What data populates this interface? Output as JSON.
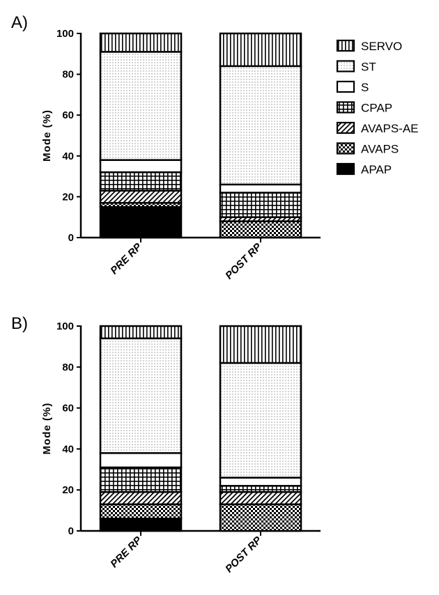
{
  "chart_data": [
    {
      "panel": "A)",
      "type": "bar",
      "stacked": true,
      "ylabel": "Mode (%)",
      "ylim": [
        0,
        100
      ],
      "yticks": [
        0,
        20,
        40,
        60,
        80,
        100
      ],
      "categories": [
        "PRE RP",
        "POST RP"
      ],
      "series": [
        {
          "name": "APAP",
          "pattern": "solid-black",
          "values": [
            15,
            0
          ]
        },
        {
          "name": "AVAPS",
          "pattern": "checker",
          "values": [
            2,
            8
          ]
        },
        {
          "name": "AVAPS-AE",
          "pattern": "diagonal",
          "values": [
            6,
            2
          ]
        },
        {
          "name": "CPAP",
          "pattern": "grid",
          "values": [
            9,
            12
          ]
        },
        {
          "name": "S",
          "pattern": "white",
          "values": [
            6,
            4
          ]
        },
        {
          "name": "ST",
          "pattern": "dots",
          "values": [
            53,
            58
          ]
        },
        {
          "name": "SERVO",
          "pattern": "vertical",
          "values": [
            9,
            16
          ]
        }
      ]
    },
    {
      "panel": "B)",
      "type": "bar",
      "stacked": true,
      "ylabel": "Mode (%)",
      "ylim": [
        0,
        100
      ],
      "yticks": [
        0,
        20,
        40,
        60,
        80,
        100
      ],
      "categories": [
        "PRE RP",
        "POST RP"
      ],
      "series": [
        {
          "name": "APAP",
          "pattern": "solid-black",
          "values": [
            6,
            0
          ]
        },
        {
          "name": "AVAPS",
          "pattern": "checker",
          "values": [
            7,
            13
          ]
        },
        {
          "name": "AVAPS-AE",
          "pattern": "diagonal",
          "values": [
            6,
            6
          ]
        },
        {
          "name": "CPAP",
          "pattern": "grid",
          "values": [
            12,
            3
          ]
        },
        {
          "name": "S",
          "pattern": "white",
          "values": [
            7,
            4
          ]
        },
        {
          "name": "ST",
          "pattern": "dots",
          "values": [
            56,
            56
          ]
        },
        {
          "name": "SERVO",
          "pattern": "vertical",
          "values": [
            6,
            18
          ]
        }
      ]
    }
  ],
  "legend": {
    "placement": "right of panel A",
    "entries": [
      {
        "label": "SERVO",
        "pattern": "vertical"
      },
      {
        "label": "ST",
        "pattern": "dots"
      },
      {
        "label": "S",
        "pattern": "white"
      },
      {
        "label": "CPAP",
        "pattern": "grid"
      },
      {
        "label": "AVAPS-AE",
        "pattern": "diagonal"
      },
      {
        "label": "AVAPS",
        "pattern": "checker"
      },
      {
        "label": "APAP",
        "pattern": "solid-black"
      }
    ]
  },
  "colors": {
    "ink": "#000000",
    "fill_light": "#ffffff",
    "fill_gray": "#bdbdbd"
  }
}
